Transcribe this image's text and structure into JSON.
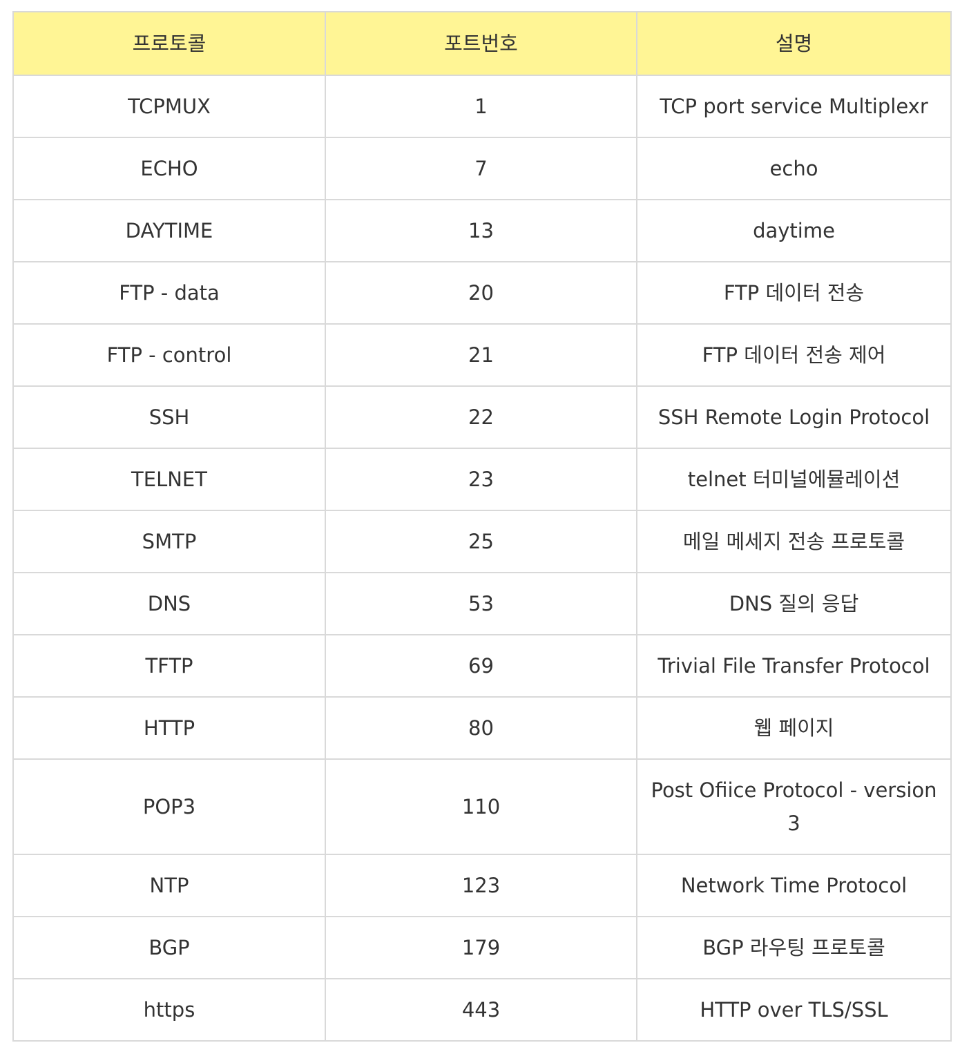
{
  "table": {
    "headers": [
      "프로토콜",
      "포트번호",
      "설명"
    ],
    "rows": [
      {
        "protocol": "TCPMUX",
        "port": "1",
        "description": "TCP port service Multiplexr"
      },
      {
        "protocol": "ECHO",
        "port": "7",
        "description": "echo"
      },
      {
        "protocol": "DAYTIME",
        "port": "13",
        "description": "daytime"
      },
      {
        "protocol": "FTP - data",
        "port": "20",
        "description": "FTP 데이터 전송"
      },
      {
        "protocol": "FTP - control",
        "port": "21",
        "description": "FTP 데이터 전송 제어"
      },
      {
        "protocol": "SSH",
        "port": "22",
        "description": "SSH Remote Login Protocol"
      },
      {
        "protocol": "TELNET",
        "port": "23",
        "description": "telnet 터미널에뮬레이션"
      },
      {
        "protocol": "SMTP",
        "port": "25",
        "description": "메일 메세지 전송 프로토콜"
      },
      {
        "protocol": "DNS",
        "port": "53",
        "description": "DNS 질의 응답"
      },
      {
        "protocol": "TFTP",
        "port": "69",
        "description": "Trivial File Transfer Protocol"
      },
      {
        "protocol": "HTTP",
        "port": "80",
        "description": "웹 페이지"
      },
      {
        "protocol": "POP3",
        "port": "110",
        "description": "Post Ofiice Protocol - version 3"
      },
      {
        "protocol": "NTP",
        "port": "123",
        "description": "Network Time Protocol"
      },
      {
        "protocol": "BGP",
        "port": "179",
        "description": "BGP 라우팅 프로토콜"
      },
      {
        "protocol": "https",
        "port": "443",
        "description": "HTTP over TLS/SSL"
      }
    ]
  },
  "colors": {
    "header_background": "#fff595",
    "border": "#d9d9d9",
    "text": "#333333"
  }
}
